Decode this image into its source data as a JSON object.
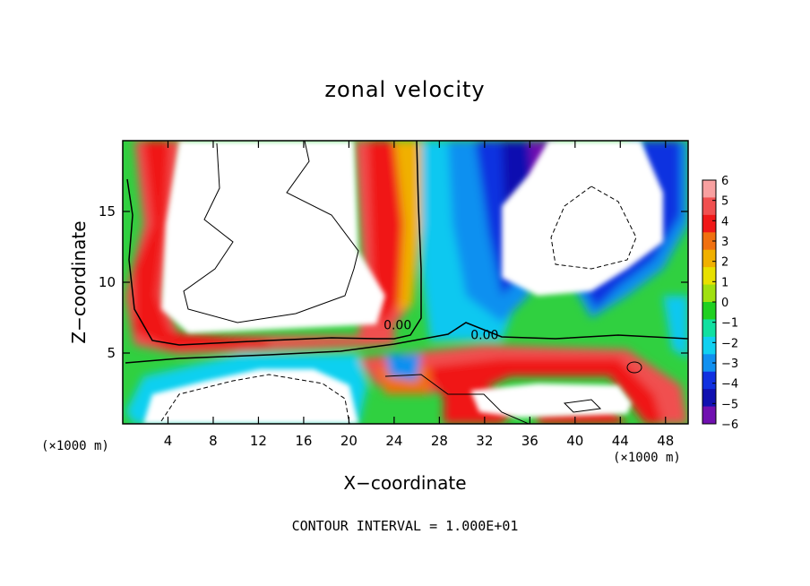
{
  "chart_data": {
    "type": "heatmap",
    "title": "zonal velocity",
    "xlabel": "X−coordinate",
    "ylabel": "Z−coordinate",
    "x_unit_label": "(×1000 m)",
    "y_unit_label": "(×1000 m)",
    "xlim": [
      0,
      50
    ],
    "ylim": [
      0,
      20
    ],
    "xticks": [
      4,
      8,
      12,
      16,
      20,
      24,
      28,
      32,
      36,
      40,
      44,
      48
    ],
    "yticks": [
      5,
      10,
      15
    ],
    "colorbar": {
      "ticks": [
        6,
        5,
        4,
        3,
        2,
        1,
        0,
        -1,
        -2,
        -3,
        -4,
        -5,
        -6
      ],
      "tick_labels": [
        "6",
        "5",
        "4",
        "3",
        "2",
        "1",
        "0",
        "−1",
        "−2",
        "−3",
        "−4",
        "−5",
        "−6"
      ],
      "colors": [
        "#f8a0a0",
        "#f05050",
        "#f01818",
        "#f07010",
        "#f0b000",
        "#e8e000",
        "#a0e010",
        "#20d020",
        "#10e0a0",
        "#10d0f0",
        "#1090f0",
        "#1030e0",
        "#1010b0",
        "#7010b0"
      ],
      "position": "right"
    },
    "contour_labels": [
      {
        "text": "0.00",
        "x": 24.3,
        "z": 7.0
      },
      {
        "text": "0.00",
        "x": 32.0,
        "z": 6.3
      }
    ],
    "footer": "CONTOUR INTERVAL = 1.000E+01"
  }
}
